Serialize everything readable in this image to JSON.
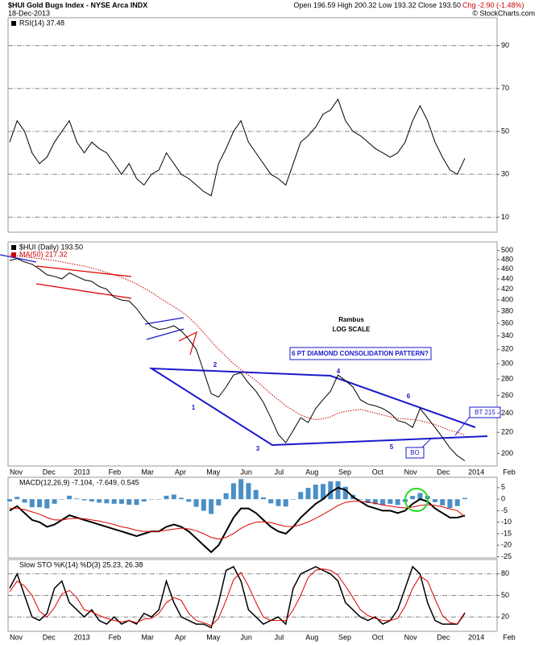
{
  "header": {
    "title": "$HUI Gold Bugs Index - NYSE Arca INDX",
    "date": "18-Dec-2013",
    "quote": "Open 196.59 High 200.32 Low 193.32 Close 193.50",
    "change": "Chg -2.90 (-1.48%)",
    "credit": "© StockCharts.com"
  },
  "chart_data": [
    {
      "type": "line",
      "ylim": [
        3,
        103
      ],
      "yticks": [
        10,
        30,
        50,
        70,
        90
      ],
      "grid": true,
      "series": [
        {
          "name": "RSI(14) 37.48",
          "color": "#000000",
          "values": [
            45,
            55,
            50,
            40,
            35,
            38,
            45,
            50,
            55,
            45,
            40,
            45,
            42,
            40,
            35,
            30,
            35,
            28,
            25,
            30,
            32,
            40,
            35,
            30,
            28,
            25,
            22,
            20,
            35,
            42,
            50,
            55,
            45,
            40,
            35,
            30,
            28,
            25,
            35,
            45,
            48,
            52,
            58,
            60,
            65,
            55,
            50,
            48,
            45,
            42,
            40,
            38,
            40,
            45,
            55,
            62,
            55,
            45,
            38,
            32,
            30,
            37.48
          ]
        }
      ]
    },
    {
      "type": "line",
      "log": true,
      "ylim": [
        189,
        520
      ],
      "yticks": [
        200,
        220,
        240,
        260,
        280,
        300,
        320,
        340,
        360,
        380,
        400,
        420,
        440,
        460,
        480,
        500
      ],
      "grid": false,
      "x_labels": [
        "Nov",
        "Dec",
        "2013",
        "Feb",
        "Mar",
        "Apr",
        "May",
        "Jun",
        "Jul",
        "Aug",
        "Sep",
        "Oct",
        "Nov",
        "Dec",
        "2014",
        "Feb"
      ],
      "annotations": [
        "Rambus",
        "LOG SCALE",
        "6 PT DIAMOND CONSOLIDATION PATTERN?",
        "1",
        "2",
        "3",
        "4",
        "5",
        "6",
        "BT 215",
        "BO"
      ],
      "series": [
        {
          "name": "$HUI (Daily) 193.50",
          "color": "#000000",
          "values": [
            478,
            482,
            475,
            470,
            460,
            448,
            445,
            440,
            452,
            445,
            438,
            435,
            425,
            420,
            405,
            400,
            398,
            385,
            368,
            355,
            350,
            352,
            356,
            348,
            335,
            320,
            290,
            262,
            258,
            270,
            285,
            288,
            275,
            265,
            252,
            235,
            218,
            210,
            222,
            235,
            230,
            245,
            255,
            265,
            285,
            278,
            270,
            255,
            250,
            248,
            245,
            240,
            232,
            230,
            225,
            245,
            235,
            225,
            215,
            205,
            198,
            193.5
          ]
        },
        {
          "name": "MA(50) 217.32",
          "color": "#cc0000",
          "style": "dotted",
          "values": [
            490,
            488,
            486,
            484,
            482,
            480,
            478,
            475,
            472,
            469,
            466,
            462,
            458,
            453,
            448,
            443,
            437,
            430,
            422,
            414,
            405,
            396,
            388,
            380,
            370,
            358,
            345,
            332,
            320,
            310,
            300,
            292,
            285,
            278,
            270,
            262,
            255,
            248,
            243,
            238,
            235,
            233,
            234,
            236,
            240,
            242,
            243,
            244,
            242,
            240,
            238,
            236,
            234,
            234,
            233,
            232,
            230,
            228,
            225,
            222,
            220,
            217.32
          ]
        }
      ]
    },
    {
      "type": "line",
      "label": "MACD(12,26,9) -7.104, -7.649, 0.545",
      "ylim": [
        -25.5,
        9.5
      ],
      "yticks": [
        5,
        0,
        -5,
        -10,
        -15,
        -20,
        -25
      ],
      "grid": false,
      "series": [
        {
          "type": "bar",
          "color": "#4a8fc6",
          "values": [
            -1,
            1,
            -1.5,
            -3.5,
            -3.5,
            -4,
            -2,
            0,
            1.5,
            0.3,
            -0.5,
            -1,
            -1.5,
            -1.8,
            -2,
            -2,
            -2.4,
            -2.5,
            -1,
            0,
            0,
            1.5,
            2,
            0.6,
            -1.1,
            -3.3,
            -5,
            -6.4,
            -2.7,
            2.6,
            6.9,
            8.7,
            7,
            4,
            0.8,
            -1.8,
            -3,
            -3.2,
            -0.1,
            3.1,
            4.9,
            6.3,
            6.6,
            7.7,
            7.8,
            5.4,
            1.9,
            -0.1,
            -1.7,
            -2.2,
            -2.5,
            -2,
            -2.5,
            -1.2,
            1.4,
            2.7,
            1.4,
            -1.3,
            -2.7,
            -3.8,
            -3,
            0.545
          ]
        },
        {
          "color": "#000000",
          "width": 2,
          "values": [
            -5,
            -3,
            -6,
            -9,
            -10,
            -12,
            -11,
            -9,
            -7,
            -8,
            -9,
            -10,
            -11,
            -12,
            -13,
            -14,
            -15,
            -16,
            -15,
            -14,
            -14,
            -12,
            -11,
            -12,
            -14,
            -17,
            -20,
            -23,
            -20,
            -14,
            -8,
            -4,
            -4,
            -6,
            -9,
            -12,
            -14,
            -15,
            -12,
            -8,
            -5,
            -2,
            0,
            3,
            5,
            4,
            1,
            -1,
            -3,
            -4,
            -5,
            -5,
            -6,
            -5,
            -2,
            0,
            -1,
            -4,
            -6,
            -8,
            -8,
            -7.104
          ]
        },
        {
          "color": "#dd0000",
          "width": 1,
          "values": [
            -4,
            -4,
            -4.5,
            -5.5,
            -6.5,
            -8,
            -9,
            -9,
            -8.5,
            -8.3,
            -8.5,
            -9,
            -9.5,
            -10.2,
            -11,
            -12,
            -12.6,
            -13.5,
            -14,
            -14,
            -14,
            -13.5,
            -13,
            -12.6,
            -12.9,
            -13.7,
            -15,
            -16.6,
            -17.3,
            -16.6,
            -14.9,
            -12.7,
            -11,
            -10,
            -9.8,
            -10.2,
            -11,
            -11.8,
            -11.9,
            -11.1,
            -9.9,
            -8.3,
            -6.6,
            -4.7,
            -2.8,
            -1.4,
            -0.9,
            -0.9,
            -1.3,
            -1.8,
            -2.5,
            -3,
            -3.5,
            -3.8,
            -3.4,
            -2.7,
            -2.4,
            -2.7,
            -3.3,
            -4.2,
            -5,
            -7.649
          ]
        }
      ]
    },
    {
      "type": "line",
      "label": "Slow STO %K(14) %D(3) 25.23, 26.38",
      "ylim": [
        0,
        100
      ],
      "yticks": [
        20,
        50,
        80
      ],
      "grid": true,
      "x_labels": [
        "Nov",
        "Dec",
        "2013",
        "Feb",
        "Mar",
        "Apr",
        "May",
        "Jun",
        "Jul",
        "Aug",
        "Sep",
        "Oct",
        "Nov",
        "Dec",
        "2014",
        "Feb"
      ],
      "series": [
        {
          "color": "#000000",
          "width": 1.5,
          "values": [
            60,
            80,
            50,
            20,
            15,
            25,
            60,
            70,
            40,
            30,
            20,
            30,
            15,
            10,
            20,
            10,
            15,
            10,
            25,
            20,
            30,
            70,
            40,
            20,
            15,
            10,
            10,
            5,
            40,
            85,
            90,
            70,
            30,
            20,
            10,
            15,
            20,
            10,
            60,
            80,
            85,
            90,
            85,
            80,
            70,
            40,
            30,
            20,
            15,
            20,
            10,
            15,
            30,
            60,
            90,
            80,
            40,
            15,
            10,
            10,
            10,
            25.23
          ]
        },
        {
          "color": "#dd0000",
          "width": 1,
          "values": [
            55,
            70,
            63,
            50,
            28,
            20,
            33,
            52,
            57,
            47,
            30,
            27,
            22,
            18,
            15,
            13,
            15,
            12,
            17,
            18,
            25,
            40,
            47,
            43,
            25,
            15,
            12,
            8,
            18,
            43,
            72,
            82,
            63,
            40,
            20,
            15,
            15,
            15,
            30,
            50,
            75,
            85,
            87,
            85,
            78,
            63,
            47,
            30,
            22,
            18,
            15,
            15,
            18,
            35,
            60,
            77,
            70,
            45,
            22,
            12,
            10,
            26.38
          ]
        }
      ]
    }
  ]
}
